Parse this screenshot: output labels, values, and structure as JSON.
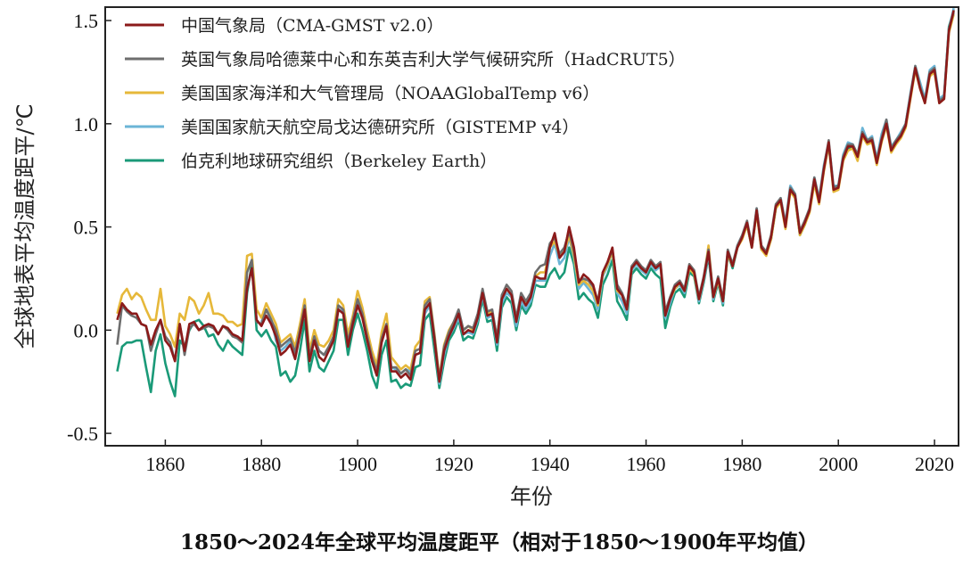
{
  "chart_data": {
    "type": "line",
    "title": "1850～2024年全球平均温度距平（相对于1850～1900年平均值）",
    "xlabel": "年份",
    "ylabel": "全球地表平均温度距平/℃",
    "xlim": [
      1847.5,
      2025
    ],
    "ylim": [
      -0.56,
      1.565
    ],
    "x_ticks": [
      1860,
      1880,
      1900,
      1920,
      1940,
      1960,
      1980,
      2000,
      2020
    ],
    "y_ticks": [
      -0.5,
      0.0,
      0.5,
      1.0,
      1.5
    ],
    "y_tick_labels": [
      "-0.5",
      "0.0",
      "0.5",
      "1.0",
      "1.5"
    ],
    "grid": false,
    "legend_placement": "top-left",
    "year_range": [
      1850,
      2024
    ],
    "series": [
      {
        "name": "伯克利地球研究组织（Berkeley Earth）",
        "color": "#1a9a78",
        "values": [
          -0.2,
          -0.08,
          -0.06,
          -0.06,
          -0.05,
          -0.05,
          -0.18,
          -0.3,
          -0.1,
          -0.02,
          -0.16,
          -0.25,
          -0.32,
          -0.05,
          -0.08,
          0.0,
          0.04,
          0.05,
          0.02,
          -0.03,
          -0.02,
          -0.07,
          -0.1,
          -0.05,
          -0.08,
          -0.1,
          -0.12,
          0.18,
          0.32,
          0.0,
          -0.03,
          0.0,
          -0.05,
          -0.08,
          -0.22,
          -0.2,
          -0.25,
          -0.22,
          -0.1,
          0.05,
          -0.2,
          -0.1,
          -0.18,
          -0.2,
          -0.15,
          -0.1,
          0.05,
          0.05,
          -0.12,
          0.0,
          0.08,
          0.0,
          -0.1,
          -0.22,
          -0.28,
          -0.12,
          -0.05,
          -0.25,
          -0.24,
          -0.28,
          -0.26,
          -0.27,
          -0.18,
          -0.17,
          0.05,
          0.08,
          -0.1,
          -0.28,
          -0.15,
          -0.05,
          -0.01,
          0.05,
          -0.05,
          -0.03,
          -0.04,
          0.03,
          0.15,
          0.04,
          0.05,
          -0.1,
          0.11,
          0.16,
          0.13,
          0.0,
          0.12,
          0.08,
          0.12,
          0.22,
          0.21,
          0.21,
          0.27,
          0.3,
          0.25,
          0.28,
          0.4,
          0.32,
          0.15,
          0.18,
          0.15,
          0.13,
          0.06,
          0.22,
          0.27,
          0.34,
          0.14,
          0.1,
          0.05,
          0.27,
          0.3,
          0.27,
          0.25,
          0.3,
          0.27,
          0.25,
          0.01,
          0.11,
          0.18,
          0.2,
          0.16,
          0.28,
          0.26,
          0.13,
          0.23,
          0.36,
          0.14,
          0.23,
          0.12,
          0.37,
          0.3,
          0.4,
          0.45,
          0.51,
          0.4,
          0.58,
          0.39,
          0.37,
          0.44,
          0.59,
          0.63,
          0.5,
          0.68,
          0.64,
          0.46,
          0.51,
          0.58,
          0.72,
          0.62,
          0.78,
          0.9,
          0.68,
          0.69,
          0.83,
          0.88,
          0.88,
          0.84,
          0.96,
          0.91,
          0.92,
          0.81,
          0.92,
          1.01,
          0.87,
          0.91,
          0.95,
          1.0,
          1.14,
          1.27,
          1.18,
          1.11,
          1.25,
          1.27,
          1.11,
          1.13,
          1.47,
          1.55
        ]
      },
      {
        "name": "美国国家航天航空局戈达德研究所（GISTEMP v4）",
        "color": "#6bb5d6",
        "values": [
          null,
          null,
          null,
          null,
          null,
          null,
          null,
          null,
          null,
          null,
          null,
          null,
          null,
          null,
          null,
          null,
          null,
          null,
          null,
          null,
          null,
          null,
          null,
          null,
          null,
          null,
          null,
          null,
          null,
          null,
          0.04,
          0.1,
          0.06,
          -0.05,
          -0.1,
          -0.08,
          -0.05,
          -0.1,
          -0.02,
          0.12,
          -0.13,
          -0.05,
          -0.1,
          -0.12,
          -0.1,
          -0.05,
          0.1,
          0.09,
          -0.06,
          0.03,
          0.14,
          0.07,
          -0.04,
          -0.14,
          -0.22,
          -0.06,
          0.03,
          -0.18,
          -0.19,
          -0.21,
          -0.19,
          -0.2,
          -0.12,
          -0.11,
          0.08,
          0.12,
          -0.05,
          -0.26,
          -0.12,
          -0.03,
          0.01,
          0.06,
          -0.02,
          -0.01,
          -0.02,
          0.05,
          0.17,
          0.06,
          0.07,
          -0.07,
          0.13,
          0.18,
          0.16,
          0.02,
          0.14,
          0.1,
          0.14,
          0.24,
          0.24,
          0.24,
          0.36,
          0.42,
          0.32,
          0.35,
          0.45,
          0.35,
          0.2,
          0.23,
          0.2,
          0.17,
          0.1,
          0.26,
          0.31,
          0.38,
          0.18,
          0.14,
          0.08,
          0.29,
          0.32,
          0.29,
          0.27,
          0.32,
          0.29,
          0.31,
          0.06,
          0.13,
          0.2,
          0.22,
          0.18,
          0.3,
          0.27,
          0.14,
          0.24,
          0.37,
          0.15,
          0.24,
          0.13,
          0.38,
          0.31,
          0.41,
          0.46,
          0.52,
          0.41,
          0.59,
          0.4,
          0.37,
          0.45,
          0.6,
          0.64,
          0.52,
          0.7,
          0.66,
          0.47,
          0.52,
          0.59,
          0.74,
          0.64,
          0.8,
          0.91,
          0.7,
          0.7,
          0.85,
          0.91,
          0.9,
          0.85,
          0.98,
          0.92,
          0.94,
          0.83,
          0.95,
          1.02,
          0.89,
          0.92,
          0.96,
          1.0,
          1.15,
          1.28,
          1.2,
          1.12,
          1.26,
          1.28,
          1.12,
          1.14,
          1.46,
          1.56
        ]
      },
      {
        "name": "美国国家海洋和大气管理局（NOAAGlobalTemp v6）",
        "color": "#e6b83a",
        "values": [
          0.08,
          0.17,
          0.2,
          0.15,
          0.18,
          0.16,
          0.1,
          0.05,
          0.05,
          0.2,
          0.02,
          -0.02,
          -0.08,
          0.08,
          0.05,
          0.16,
          0.14,
          0.08,
          0.12,
          0.18,
          0.08,
          0.08,
          0.07,
          0.04,
          0.04,
          0.02,
          0.03,
          0.36,
          0.37,
          0.1,
          0.06,
          0.13,
          0.08,
          0.03,
          -0.06,
          -0.04,
          -0.02,
          -0.08,
          0.03,
          0.15,
          -0.1,
          0.0,
          -0.07,
          -0.08,
          -0.05,
          0.0,
          0.15,
          0.12,
          -0.02,
          0.07,
          0.19,
          0.11,
          0.0,
          -0.1,
          -0.17,
          -0.01,
          0.08,
          -0.13,
          -0.16,
          -0.19,
          -0.17,
          -0.19,
          -0.08,
          -0.05,
          0.14,
          0.16,
          -0.02,
          -0.23,
          -0.07,
          0.0,
          0.04,
          0.09,
          0.0,
          0.02,
          0.0,
          0.07,
          0.19,
          0.08,
          0.09,
          -0.04,
          0.16,
          0.2,
          0.17,
          0.05,
          0.16,
          0.13,
          0.17,
          0.26,
          0.28,
          0.28,
          0.4,
          0.43,
          0.36,
          0.38,
          0.46,
          0.36,
          0.22,
          0.24,
          0.22,
          0.19,
          0.12,
          0.27,
          0.32,
          0.38,
          0.19,
          0.17,
          0.1,
          0.3,
          0.33,
          0.3,
          0.28,
          0.33,
          0.31,
          0.32,
          0.08,
          0.15,
          0.2,
          0.23,
          0.19,
          0.3,
          0.27,
          0.15,
          0.25,
          0.41,
          0.16,
          0.24,
          0.14,
          0.37,
          0.31,
          0.4,
          0.44,
          0.51,
          0.4,
          0.57,
          0.39,
          0.36,
          0.44,
          0.59,
          0.62,
          0.49,
          0.67,
          0.64,
          0.46,
          0.51,
          0.57,
          0.71,
          0.61,
          0.77,
          0.9,
          0.67,
          0.68,
          0.82,
          0.87,
          0.88,
          0.82,
          0.94,
          0.9,
          0.91,
          0.8,
          0.91,
          0.99,
          0.86,
          0.9,
          0.93,
          0.98,
          1.12,
          1.26,
          1.17,
          1.1,
          1.23,
          1.25,
          1.1,
          1.12,
          1.44,
          1.53
        ]
      },
      {
        "name": "英国气象局哈德莱中心和东英吉利大学气候研究所（HadCRUT5）",
        "color": "#6e6e6e",
        "values": [
          -0.07,
          0.12,
          0.09,
          0.07,
          0.06,
          0.03,
          0.02,
          -0.1,
          -0.02,
          0.05,
          -0.03,
          -0.06,
          -0.15,
          0.03,
          -0.12,
          0.01,
          0.03,
          0.0,
          0.01,
          0.02,
          0.01,
          -0.02,
          0.02,
          0.0,
          -0.03,
          -0.04,
          -0.06,
          0.28,
          0.34,
          0.04,
          0.03,
          0.1,
          0.05,
          0.0,
          -0.08,
          -0.06,
          -0.04,
          -0.11,
          0.0,
          0.12,
          -0.13,
          -0.03,
          -0.1,
          -0.12,
          -0.08,
          -0.03,
          0.12,
          0.1,
          -0.06,
          0.05,
          0.15,
          0.08,
          -0.03,
          -0.13,
          -0.2,
          -0.04,
          0.03,
          -0.18,
          -0.18,
          -0.21,
          -0.19,
          -0.22,
          -0.1,
          -0.09,
          0.12,
          0.15,
          -0.03,
          -0.24,
          -0.08,
          -0.01,
          0.04,
          0.1,
          0.0,
          0.02,
          0.01,
          0.08,
          0.2,
          0.09,
          0.1,
          -0.04,
          0.17,
          0.22,
          0.19,
          0.06,
          0.18,
          0.14,
          0.18,
          0.28,
          0.31,
          0.32,
          0.42,
          0.45,
          0.37,
          0.4,
          0.48,
          0.38,
          0.24,
          0.25,
          0.24,
          0.21,
          0.14,
          0.28,
          0.33,
          0.39,
          0.22,
          0.18,
          0.12,
          0.31,
          0.34,
          0.31,
          0.29,
          0.34,
          0.31,
          0.33,
          0.09,
          0.16,
          0.22,
          0.24,
          0.2,
          0.32,
          0.29,
          0.16,
          0.26,
          0.39,
          0.17,
          0.26,
          0.15,
          0.39,
          0.32,
          0.41,
          0.46,
          0.53,
          0.41,
          0.59,
          0.41,
          0.38,
          0.46,
          0.61,
          0.64,
          0.51,
          0.69,
          0.66,
          0.48,
          0.53,
          0.59,
          0.74,
          0.63,
          0.79,
          0.92,
          0.69,
          0.7,
          0.84,
          0.9,
          0.9,
          0.85,
          0.96,
          0.92,
          0.93,
          0.82,
          0.93,
          1.02,
          0.88,
          0.92,
          0.95,
          1.0,
          1.14,
          1.28,
          1.18,
          1.11,
          1.25,
          1.27,
          1.11,
          1.13,
          1.46,
          1.54
        ]
      },
      {
        "name": "中国气象局（CMA-GMST v2.0）",
        "color": "#8b1a1a",
        "values": [
          0.05,
          0.13,
          0.1,
          0.08,
          0.08,
          0.03,
          0.02,
          -0.07,
          0.0,
          0.05,
          -0.05,
          -0.08,
          -0.15,
          0.03,
          -0.1,
          0.03,
          0.04,
          0.0,
          0.02,
          0.03,
          0.02,
          -0.02,
          0.02,
          0.01,
          -0.02,
          -0.03,
          -0.05,
          0.2,
          0.3,
          0.05,
          0.02,
          0.07,
          0.03,
          -0.03,
          -0.12,
          -0.1,
          -0.07,
          -0.14,
          -0.02,
          0.1,
          -0.15,
          -0.05,
          -0.13,
          -0.15,
          -0.1,
          -0.05,
          0.1,
          0.08,
          -0.08,
          0.03,
          0.12,
          0.06,
          -0.05,
          -0.15,
          -0.22,
          -0.06,
          0.02,
          -0.2,
          -0.2,
          -0.23,
          -0.21,
          -0.24,
          -0.12,
          -0.11,
          0.1,
          0.13,
          -0.05,
          -0.25,
          -0.1,
          -0.03,
          0.02,
          0.08,
          -0.02,
          0.0,
          -0.01,
          0.06,
          0.18,
          0.07,
          0.08,
          -0.06,
          0.15,
          0.2,
          0.17,
          0.04,
          0.16,
          0.12,
          0.16,
          0.26,
          0.25,
          0.25,
          0.4,
          0.47,
          0.35,
          0.38,
          0.5,
          0.4,
          0.23,
          0.27,
          0.25,
          0.22,
          0.13,
          0.28,
          0.33,
          0.4,
          0.2,
          0.17,
          0.1,
          0.3,
          0.33,
          0.3,
          0.28,
          0.33,
          0.3,
          0.32,
          0.07,
          0.15,
          0.21,
          0.23,
          0.19,
          0.31,
          0.28,
          0.15,
          0.25,
          0.38,
          0.16,
          0.25,
          0.14,
          0.38,
          0.31,
          0.4,
          0.45,
          0.52,
          0.4,
          0.58,
          0.4,
          0.37,
          0.45,
          0.6,
          0.63,
          0.5,
          0.68,
          0.65,
          0.47,
          0.52,
          0.58,
          0.73,
          0.62,
          0.78,
          0.91,
          0.68,
          0.69,
          0.83,
          0.89,
          0.89,
          0.84,
          0.95,
          0.91,
          0.92,
          0.81,
          0.92,
          1.0,
          0.87,
          0.91,
          0.94,
          0.99,
          1.13,
          1.27,
          1.17,
          1.1,
          1.24,
          1.26,
          1.1,
          1.12,
          1.45,
          1.55
        ]
      }
    ],
    "legend_order": [
      4,
      3,
      2,
      1,
      0
    ]
  }
}
